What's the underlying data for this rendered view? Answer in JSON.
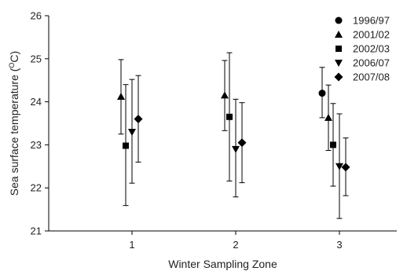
{
  "chart_data": {
    "type": "scatter",
    "title": "",
    "xlabel": "Winter Sampling Zone",
    "ylabel_main": "Sea surface temperature (",
    "ylabel_sup": "O",
    "ylabel_tail": "C)",
    "categories": [
      "1",
      "2",
      "3"
    ],
    "ylim": [
      21,
      26
    ],
    "yticks": [
      "21",
      "22",
      "23",
      "24",
      "25",
      "26"
    ],
    "grid": false,
    "legend_position": "top-right",
    "error_bars": true,
    "series": [
      {
        "name": "1996/97",
        "marker": "circle",
        "points": [
          {
            "zone": "3",
            "value": 24.2,
            "low": 23.63,
            "high": 24.8
          }
        ]
      },
      {
        "name": "2001/02",
        "marker": "triangle-up",
        "points": [
          {
            "zone": "1",
            "value": 24.12,
            "low": 23.25,
            "high": 24.98
          },
          {
            "zone": "2",
            "value": 24.15,
            "low": 23.33,
            "high": 24.96
          },
          {
            "zone": "3",
            "value": 23.63,
            "low": 22.87,
            "high": 24.39
          }
        ]
      },
      {
        "name": "2002/03",
        "marker": "square",
        "points": [
          {
            "zone": "1",
            "value": 22.98,
            "low": 21.59,
            "high": 24.4
          },
          {
            "zone": "2",
            "value": 23.65,
            "low": 22.16,
            "high": 25.14
          },
          {
            "zone": "3",
            "value": 23.0,
            "low": 22.04,
            "high": 23.96
          }
        ]
      },
      {
        "name": "2006/07",
        "marker": "triangle-down",
        "points": [
          {
            "zone": "1",
            "value": 23.3,
            "low": 22.11,
            "high": 24.52
          },
          {
            "zone": "2",
            "value": 22.9,
            "low": 21.79,
            "high": 24.06
          },
          {
            "zone": "3",
            "value": 22.5,
            "low": 21.29,
            "high": 23.72
          }
        ]
      },
      {
        "name": "2007/08",
        "marker": "diamond",
        "points": [
          {
            "zone": "1",
            "value": 23.6,
            "low": 22.6,
            "high": 24.61
          },
          {
            "zone": "2",
            "value": 23.05,
            "low": 22.12,
            "high": 23.98
          },
          {
            "zone": "3",
            "value": 22.48,
            "low": 21.82,
            "high": 23.16
          }
        ]
      }
    ]
  }
}
